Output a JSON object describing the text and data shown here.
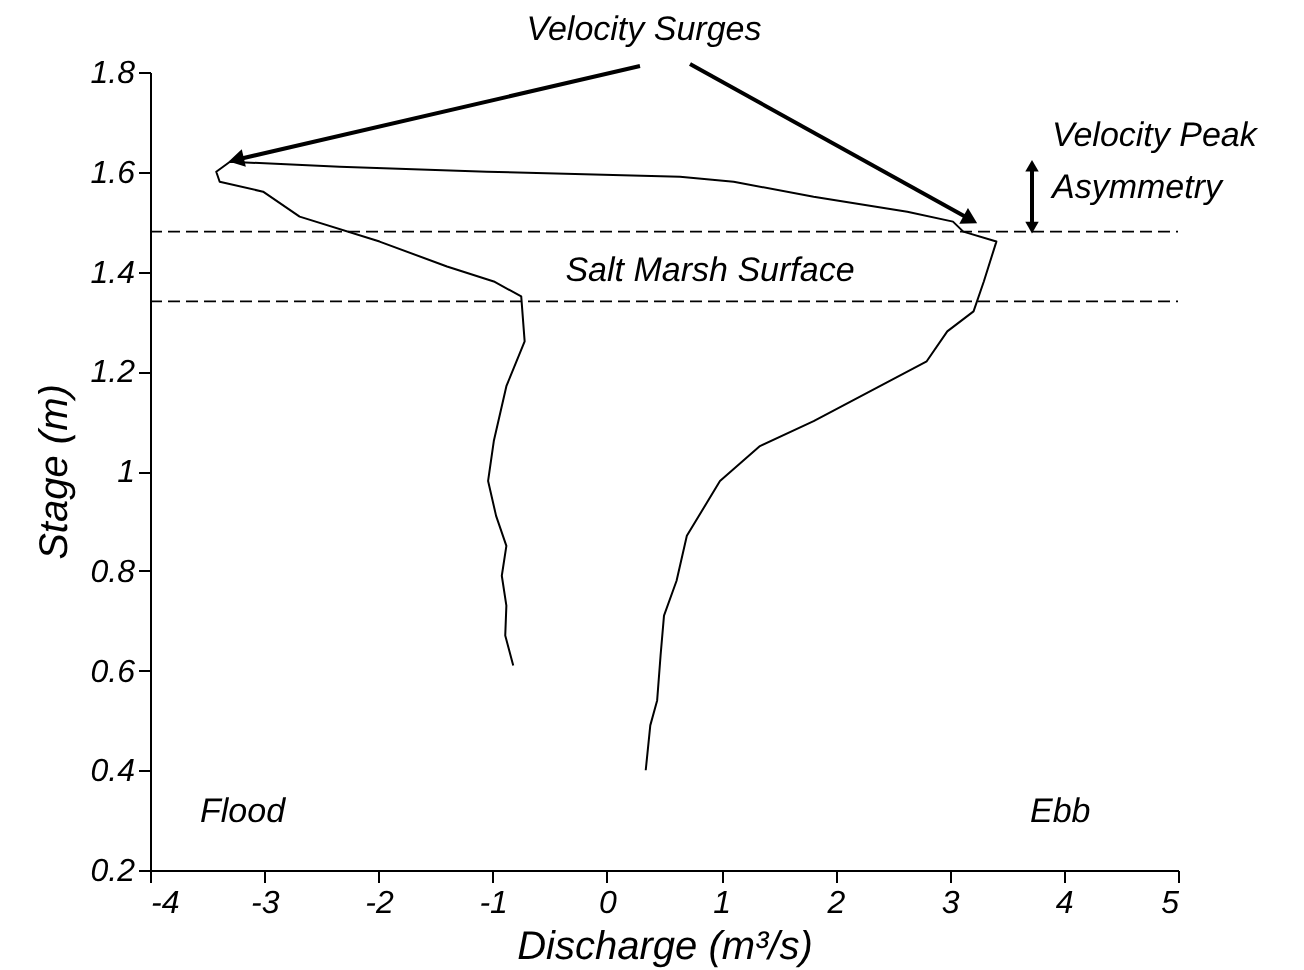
{
  "chart_data": {
    "type": "line",
    "xlabel": "Discharge (m³/s)",
    "ylabel": "Stage (m)",
    "xlim": [
      -4,
      5
    ],
    "xticks": [
      -4,
      -3,
      -2,
      -1,
      0,
      1,
      2,
      3,
      4,
      5
    ],
    "ylim": [
      0.2,
      1.8
    ],
    "yticks": [
      0.2,
      0.4,
      0.6,
      0.8,
      1,
      1.2,
      1.4,
      1.6,
      1.8
    ],
    "grid": false,
    "marker": "none",
    "line_style": "solid",
    "series": [
      {
        "color": "#000000",
        "x": [
          -0.82,
          -0.89,
          -0.88,
          -0.92,
          -0.88,
          -0.97,
          -1.04,
          -0.99,
          -0.88,
          -0.72,
          -0.75,
          -0.99,
          -1.4,
          -1.99,
          -2.69,
          -3.01,
          -3.39,
          -3.42,
          -3.36,
          -3.3,
          -2.34,
          -1.05,
          0.64,
          1.11,
          1.81,
          2.63,
          3.03,
          3.12,
          3.41,
          3.3,
          3.21,
          2.98,
          2.8,
          2.39,
          1.81,
          1.34,
          0.99,
          0.7,
          0.61,
          0.5,
          0.47,
          0.44,
          0.38,
          0.34
        ],
        "values": [
          0.61,
          0.67,
          0.73,
          0.79,
          0.85,
          0.91,
          0.98,
          1.06,
          1.17,
          1.26,
          1.35,
          1.38,
          1.41,
          1.46,
          1.51,
          1.56,
          1.58,
          1.6,
          1.61,
          1.62,
          1.61,
          1.6,
          1.59,
          1.58,
          1.55,
          1.52,
          1.5,
          1.48,
          1.46,
          1.38,
          1.32,
          1.28,
          1.22,
          1.17,
          1.1,
          1.05,
          0.98,
          0.87,
          0.78,
          0.71,
          0.63,
          0.54,
          0.49,
          0.4
        ]
      }
    ],
    "ref_lines": [
      {
        "axis": "y",
        "value": 1.48,
        "label": null,
        "color": "#000000",
        "line_style": "dashed"
      },
      {
        "axis": "y",
        "value": 1.34,
        "label": "Salt Marsh Surface",
        "color": "#000000",
        "line_style": "dashed"
      }
    ],
    "annotations": [
      "Velocity Surges",
      "Velocity Peak Asymmetry",
      "Flood",
      "Ebb"
    ]
  }
}
